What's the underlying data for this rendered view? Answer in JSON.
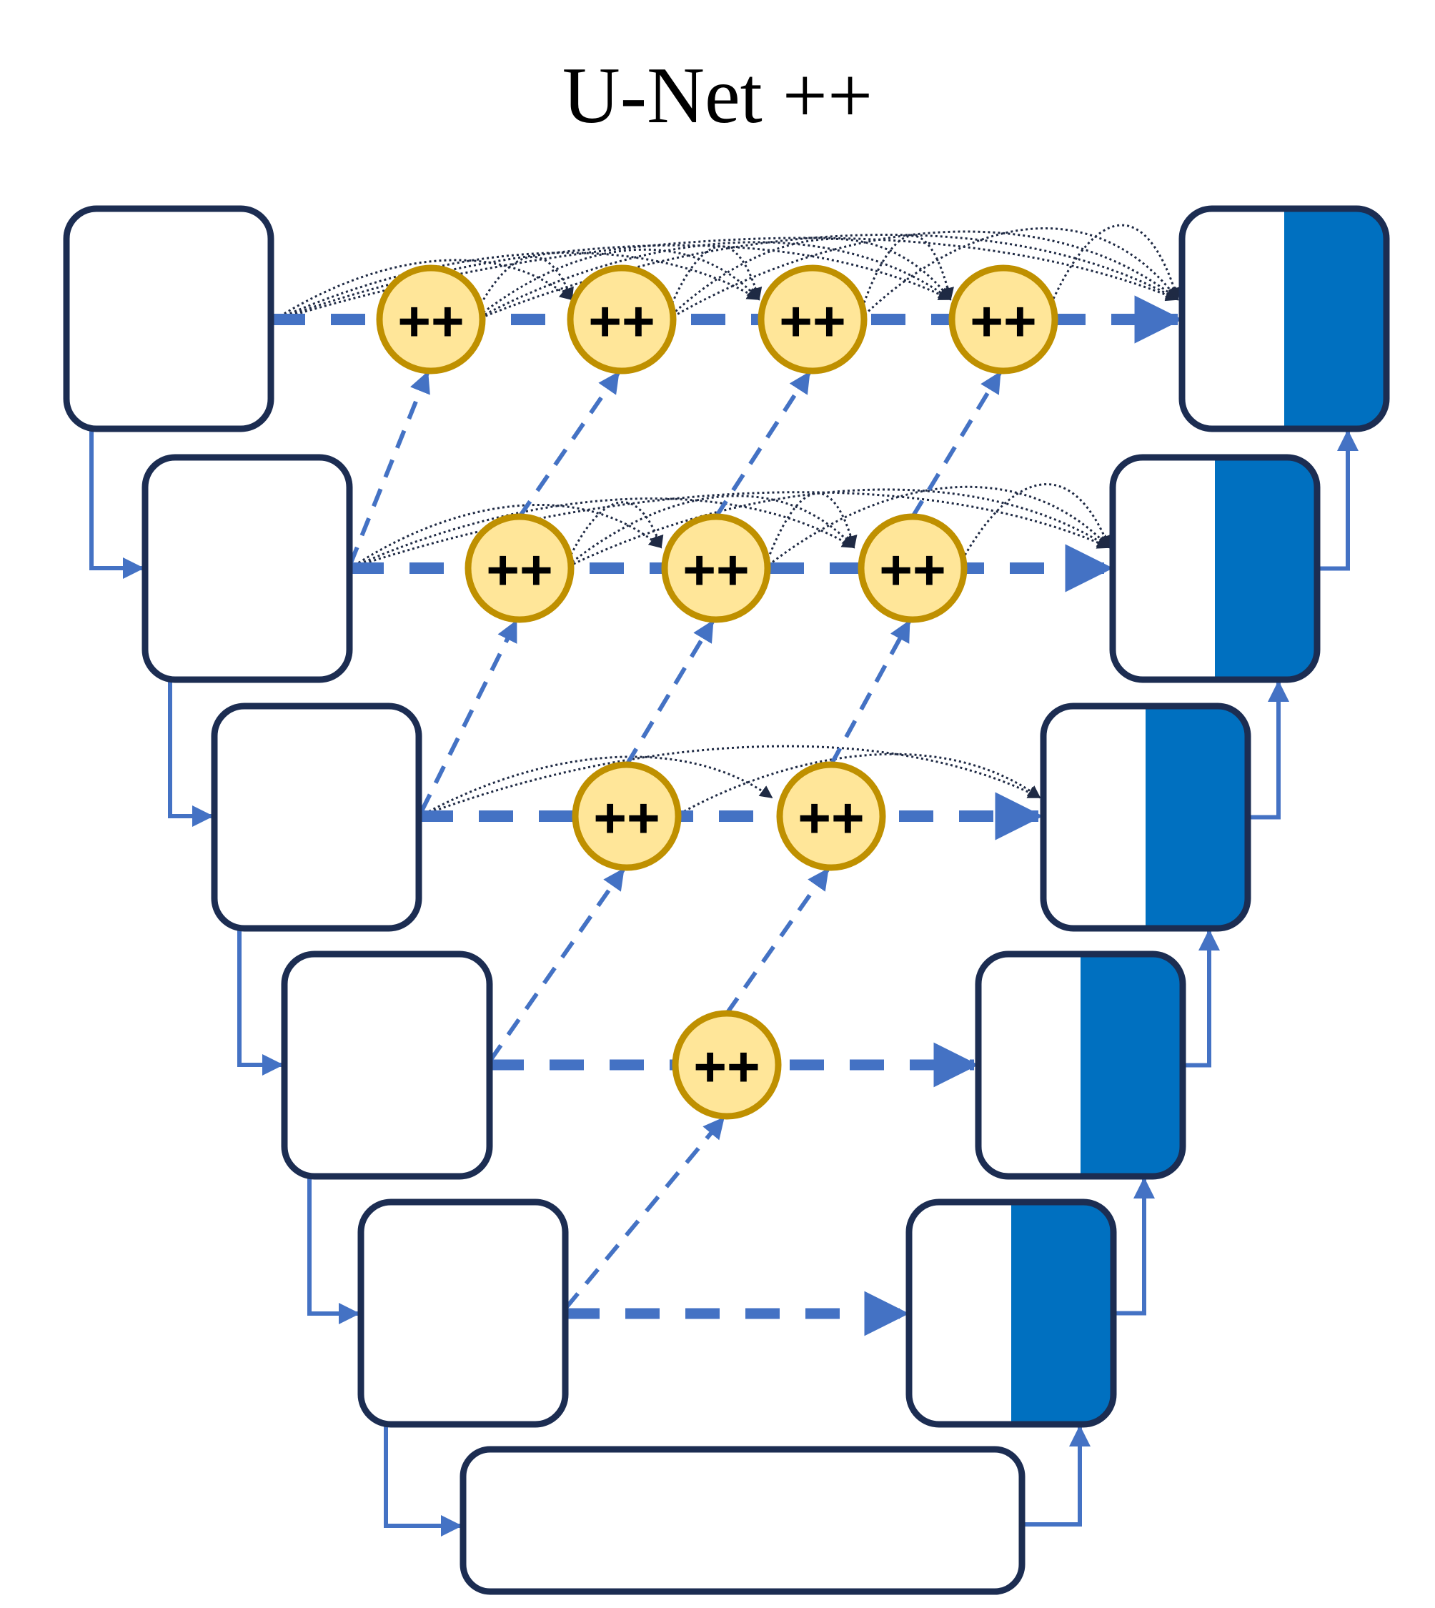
{
  "title": "U-Net ++",
  "node": {
    "label": "++"
  },
  "colors": {
    "border": "#1c2d52",
    "connector": "#4472c4",
    "skip_arrow": "#1f2a44",
    "decoder_fill": "#0070c0",
    "node_fill": "#ffe699",
    "node_border": "#bf9000",
    "background": "#ffffff"
  },
  "structure": {
    "encoder_levels": 6,
    "bottleneck": 1,
    "decoder_levels": 6,
    "nested_nodes_per_level": [
      4,
      3,
      2,
      1,
      0,
      0
    ]
  }
}
